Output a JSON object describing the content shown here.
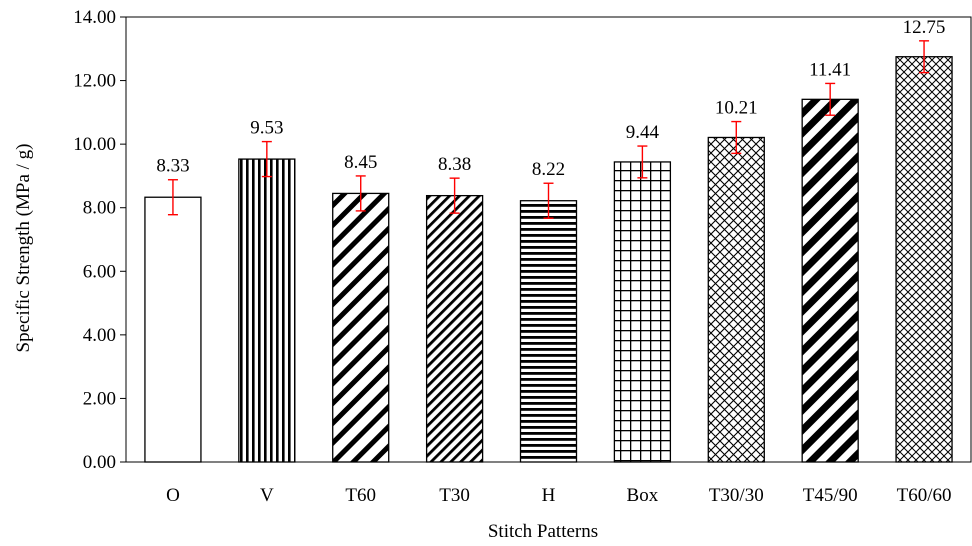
{
  "chart_data": {
    "type": "bar",
    "title": "",
    "xlabel": "Stitch Patterns",
    "ylabel": "Specific Strength (MPa / g)",
    "ylim": [
      0,
      14
    ],
    "yticks": [
      "0.00",
      "2.00",
      "4.00",
      "6.00",
      "8.00",
      "10.00",
      "12.00",
      "14.00"
    ],
    "grid": false,
    "legend": "none",
    "categories": [
      "O",
      "V",
      "T60",
      "T30",
      "H",
      "Box",
      "T30/30",
      "T45/90",
      "T60/60"
    ],
    "values": [
      8.33,
      9.53,
      8.45,
      8.38,
      8.22,
      9.44,
      10.21,
      11.41,
      12.75
    ],
    "value_labels": [
      "8.33",
      "9.53",
      "8.45",
      "8.38",
      "8.22",
      "9.44",
      "10.21",
      "11.41",
      "12.75"
    ],
    "error": [
      0.55,
      0.55,
      0.55,
      0.55,
      0.55,
      0.5,
      0.5,
      0.5,
      0.5
    ],
    "patterns": [
      "none",
      "vertical-lines",
      "diagonal-wide",
      "diagonal-narrow",
      "horizontal-lines",
      "grid",
      "crosshatch",
      "diagonal-bold",
      "crosshatch-fine"
    ],
    "colors": {
      "bar_stroke": "#000000",
      "error_bar": "#ff0000",
      "fill": "#ffffff"
    }
  }
}
